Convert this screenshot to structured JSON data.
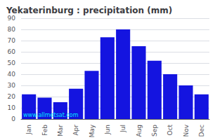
{
  "chart_data": {
    "type": "bar",
    "title": "Yekaterinburg : precipitation (mm)",
    "categories": [
      "Jan",
      "Feb",
      "Mar",
      "Apr",
      "May",
      "Jun",
      "Jul",
      "Aug",
      "Sep",
      "Oct",
      "Nov",
      "Dec"
    ],
    "values": [
      22,
      19,
      15,
      27,
      43,
      73,
      80,
      65,
      52,
      40,
      30,
      22
    ],
    "color": "#1414e0",
    "ylim": [
      0,
      90
    ],
    "yticks": [
      0,
      10,
      20,
      30,
      40,
      50,
      60,
      70,
      80,
      90
    ],
    "grid": true,
    "annotation": "www.allmetsat.com"
  }
}
